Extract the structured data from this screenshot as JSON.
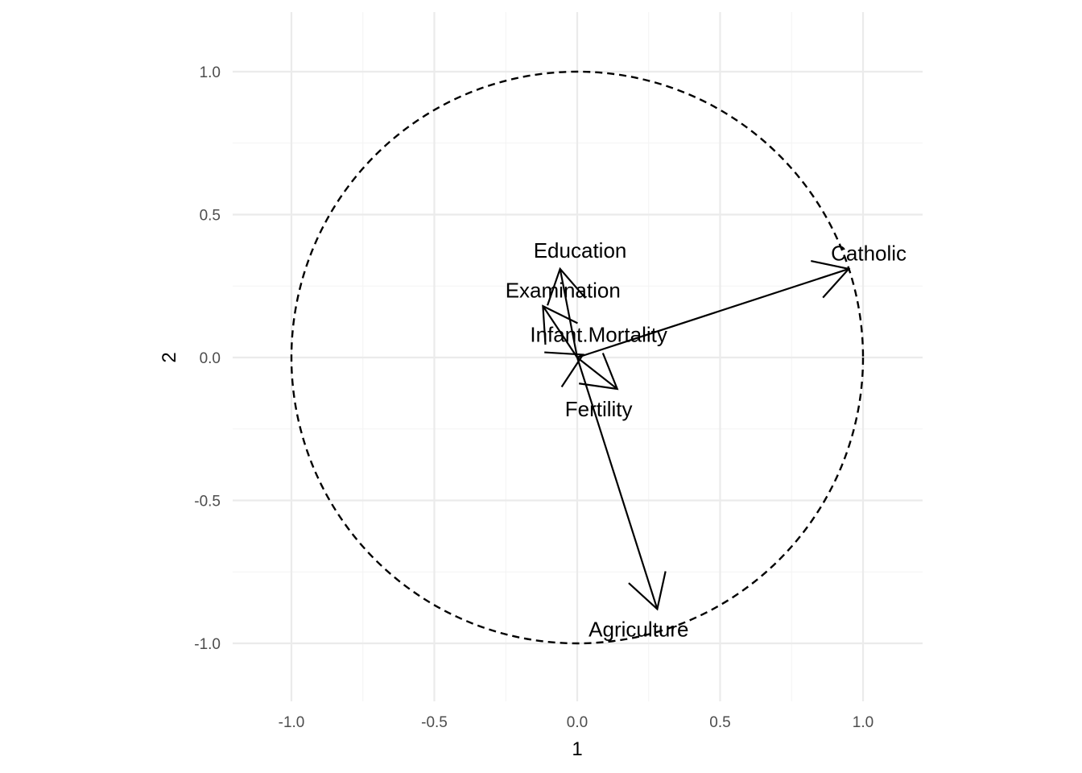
{
  "chart_data": {
    "type": "scatter",
    "subtype": "pca-correlation-circle",
    "title": "",
    "xlabel": "1",
    "ylabel": "2",
    "xlim": [
      -1.2,
      1.2
    ],
    "ylim": [
      -1.2,
      1.2
    ],
    "x_ticks": [
      -1.0,
      -0.5,
      0.0,
      0.5,
      1.0
    ],
    "x_tick_labels": [
      "-1.0",
      "-0.5",
      "0.0",
      "0.5",
      "1.0"
    ],
    "y_ticks": [
      -1.0,
      -0.5,
      0.0,
      0.5,
      1.0
    ],
    "y_tick_labels": [
      "-1.0",
      "-0.5",
      "0.0",
      "0.5",
      "1.0"
    ],
    "grid": true,
    "unit_circle": true,
    "vectors": [
      {
        "label": "Catholic",
        "x": 0.95,
        "y": 0.31
      },
      {
        "label": "Education",
        "x": -0.06,
        "y": 0.31
      },
      {
        "label": "Examination",
        "x": -0.12,
        "y": 0.18
      },
      {
        "label": "Infant.Mortality",
        "x": 0.02,
        "y": 0.01
      },
      {
        "label": "Fertility",
        "x": 0.14,
        "y": -0.11
      },
      {
        "label": "Agriculture",
        "x": 0.28,
        "y": -0.88
      }
    ],
    "vector_label_positions": [
      {
        "label": "Catholic",
        "x": 1.02,
        "y": 0.365
      },
      {
        "label": "Education",
        "x": 0.01,
        "y": 0.375
      },
      {
        "label": "Examination",
        "x": -0.05,
        "y": 0.235
      },
      {
        "label": "Infant.Mortality",
        "x": 0.075,
        "y": 0.08
      },
      {
        "label": "Fertility",
        "x": 0.075,
        "y": -0.18
      },
      {
        "label": "Agriculture",
        "x": 0.215,
        "y": -0.95
      }
    ]
  }
}
